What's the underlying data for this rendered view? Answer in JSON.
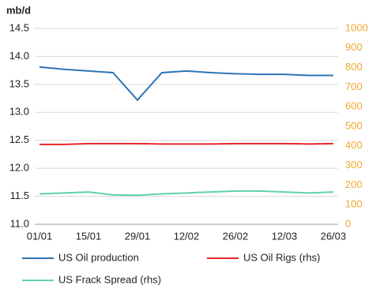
{
  "chart_data": {
    "type": "line",
    "y_label": "mb/d",
    "categories": [
      "01/01",
      null,
      "15/01",
      null,
      "29/01",
      null,
      "12/02",
      null,
      "26/02",
      null,
      "12/03",
      null,
      "26/03"
    ],
    "series": [
      {
        "name": "US Oil production",
        "color": "#2e75b6",
        "axis": "y",
        "values": [
          13.81,
          13.77,
          13.74,
          13.71,
          13.22,
          13.71,
          13.74,
          13.71,
          13.69,
          13.68,
          13.68,
          13.66,
          13.66
        ]
      },
      {
        "name": "US Oil Rigs (rhs)",
        "color": "#e8262a",
        "axis": "y2",
        "values": [
          408,
          408,
          412,
          412,
          412,
          410,
          410,
          410,
          412,
          412,
          412,
          410,
          412
        ]
      },
      {
        "name": "US Frack Spread (rhs)",
        "color": "#5fd3a6",
        "axis": "y2",
        "values": [
          155,
          160,
          165,
          150,
          148,
          155,
          160,
          165,
          170,
          170,
          165,
          160,
          165
        ]
      }
    ],
    "ylim": [
      11,
      14.5
    ],
    "yticks": [
      {
        "value": 11,
        "label": "11.0"
      },
      11.5,
      {
        "value": 12,
        "label": "12.0"
      },
      12.5,
      {
        "value": 13,
        "label": "13.0"
      },
      13.5,
      {
        "value": 14,
        "label": "14.0"
      },
      14.5
    ],
    "y2lim": [
      0,
      1000
    ],
    "y2ticks": [
      0,
      100,
      200,
      300,
      400,
      500,
      600,
      700,
      800,
      900,
      1000
    ],
    "y2_color": "#f0a830",
    "grid": true
  }
}
